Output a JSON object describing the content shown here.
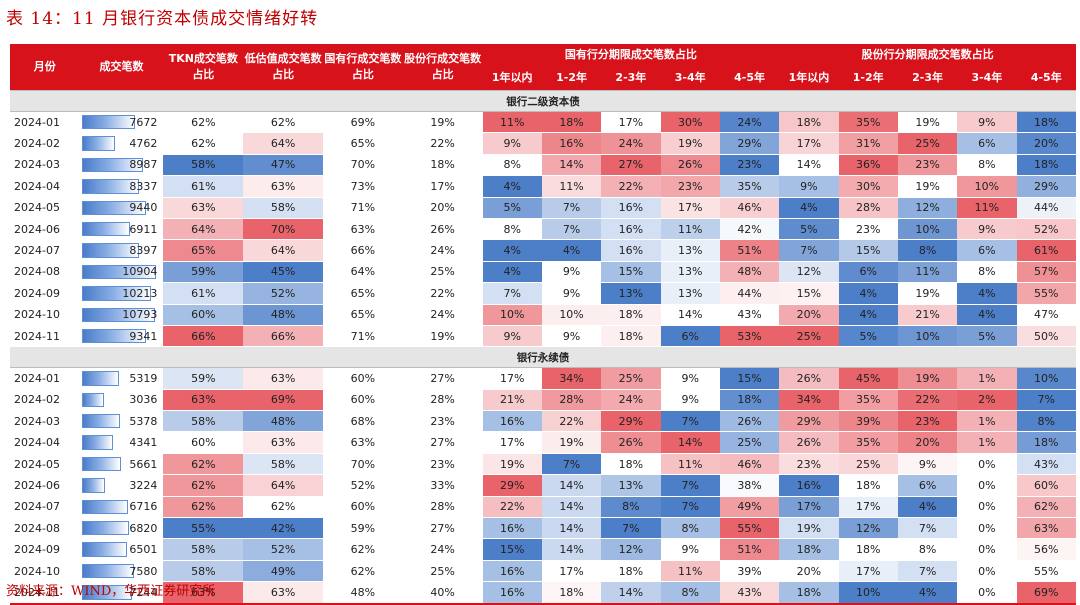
{
  "title": "表 14：11 月银行资本债成交情绪好转",
  "source": "资料来源：WIND，华西证券研究所",
  "colors": {
    "header_bg": "#d7121b",
    "section_bg": "#e5e5e5",
    "high": "#e8636a",
    "low": "#4d7fc9"
  },
  "header": {
    "month": "月份",
    "count": "成交笔数",
    "tkn": "TKN成交笔数占比",
    "lowval": "低估值成交笔数占比",
    "state_bank": "国有行成交笔数占比",
    "joint_bank": "股份行成交笔数占比",
    "group_state": "国有行分期限成交笔数占比",
    "group_joint": "股份行分期限成交笔数占比",
    "periods": [
      "1年以内",
      "1-2年",
      "2-3年",
      "3-4年",
      "4-5年"
    ]
  },
  "max_count": 10904,
  "sections": [
    {
      "label": "银行二级资本债",
      "rows": [
        {
          "month": "2024-01",
          "count": 7672,
          "v": [
            62,
            62,
            69,
            19,
            11,
            18,
            17,
            30,
            24,
            18,
            35,
            19,
            9,
            18
          ]
        },
        {
          "month": "2024-02",
          "count": 4762,
          "v": [
            62,
            64,
            65,
            22,
            9,
            16,
            24,
            19,
            29,
            17,
            31,
            25,
            6,
            20
          ]
        },
        {
          "month": "2024-03",
          "count": 8987,
          "v": [
            58,
            47,
            70,
            18,
            8,
            14,
            27,
            26,
            23,
            14,
            36,
            23,
            8,
            18
          ]
        },
        {
          "month": "2024-04",
          "count": 8337,
          "v": [
            61,
            63,
            73,
            17,
            4,
            11,
            22,
            23,
            35,
            9,
            30,
            19,
            10,
            29
          ]
        },
        {
          "month": "2024-05",
          "count": 9440,
          "v": [
            63,
            58,
            71,
            20,
            5,
            7,
            16,
            17,
            46,
            4,
            28,
            12,
            11,
            44
          ]
        },
        {
          "month": "2024-06",
          "count": 6911,
          "v": [
            64,
            70,
            63,
            26,
            8,
            7,
            16,
            11,
            42,
            5,
            23,
            10,
            9,
            52
          ]
        },
        {
          "month": "2024-07",
          "count": 8397,
          "v": [
            65,
            64,
            66,
            24,
            4,
            4,
            16,
            13,
            51,
            7,
            15,
            8,
            6,
            61
          ]
        },
        {
          "month": "2024-08",
          "count": 10904,
          "v": [
            59,
            45,
            64,
            25,
            4,
            9,
            15,
            13,
            48,
            12,
            6,
            11,
            8,
            57
          ]
        },
        {
          "month": "2024-09",
          "count": 10213,
          "v": [
            61,
            52,
            65,
            22,
            7,
            9,
            13,
            13,
            44,
            15,
            4,
            19,
            4,
            55
          ]
        },
        {
          "month": "2024-10",
          "count": 10793,
          "v": [
            60,
            48,
            65,
            24,
            10,
            10,
            18,
            14,
            43,
            20,
            4,
            21,
            4,
            47
          ]
        },
        {
          "month": "2024-11",
          "count": 9341,
          "v": [
            66,
            66,
            71,
            19,
            9,
            9,
            18,
            6,
            53,
            25,
            5,
            10,
            5,
            50
          ]
        }
      ]
    },
    {
      "label": "银行永续债",
      "rows": [
        {
          "month": "2024-01",
          "count": 5319,
          "v": [
            59,
            63,
            60,
            27,
            17,
            34,
            25,
            9,
            15,
            26,
            45,
            19,
            1,
            10
          ]
        },
        {
          "month": "2024-02",
          "count": 3036,
          "v": [
            63,
            69,
            60,
            28,
            21,
            28,
            24,
            9,
            18,
            34,
            35,
            22,
            2,
            7
          ]
        },
        {
          "month": "2024-03",
          "count": 5378,
          "v": [
            58,
            48,
            68,
            23,
            16,
            22,
            29,
            7,
            26,
            29,
            39,
            23,
            1,
            8
          ]
        },
        {
          "month": "2024-04",
          "count": 4341,
          "v": [
            60,
            63,
            63,
            27,
            17,
            19,
            26,
            14,
            25,
            26,
            35,
            20,
            1,
            18
          ]
        },
        {
          "month": "2024-05",
          "count": 5661,
          "v": [
            62,
            58,
            70,
            23,
            19,
            7,
            18,
            11,
            46,
            23,
            25,
            9,
            0,
            43
          ]
        },
        {
          "month": "2024-06",
          "count": 3224,
          "v": [
            62,
            64,
            52,
            33,
            29,
            14,
            13,
            7,
            38,
            16,
            18,
            6,
            0,
            60
          ]
        },
        {
          "month": "2024-07",
          "count": 6716,
          "v": [
            62,
            62,
            60,
            28,
            22,
            14,
            8,
            7,
            49,
            17,
            17,
            4,
            0,
            62
          ]
        },
        {
          "month": "2024-08",
          "count": 6820,
          "v": [
            55,
            42,
            59,
            27,
            16,
            14,
            7,
            8,
            55,
            19,
            12,
            7,
            0,
            63
          ]
        },
        {
          "month": "2024-09",
          "count": 6501,
          "v": [
            58,
            52,
            62,
            24,
            15,
            14,
            12,
            9,
            51,
            18,
            18,
            8,
            0,
            56
          ]
        },
        {
          "month": "2024-10",
          "count": 7580,
          "v": [
            58,
            49,
            62,
            25,
            16,
            17,
            18,
            11,
            39,
            20,
            17,
            7,
            0,
            55
          ]
        },
        {
          "month": "2024-11",
          "count": 7244,
          "v": [
            63,
            63,
            48,
            40,
            16,
            18,
            14,
            8,
            43,
            18,
            10,
            4,
            0,
            69
          ]
        }
      ]
    }
  ]
}
